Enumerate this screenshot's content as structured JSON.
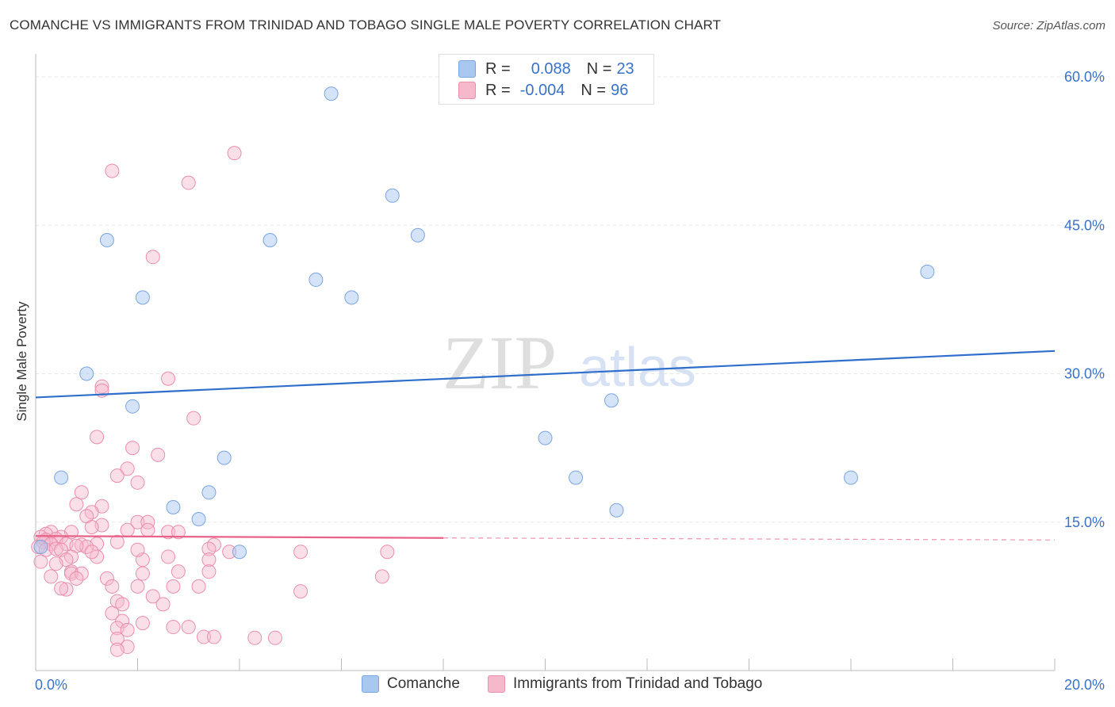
{
  "title": "COMANCHE VS IMMIGRANTS FROM TRINIDAD AND TOBAGO SINGLE MALE POVERTY CORRELATION CHART",
  "source": "Source: ZipAtlas.com",
  "watermark": {
    "zip": "ZIP",
    "atlas": "atlas"
  },
  "colors": {
    "blue_fill": "#a9c8f0",
    "blue_stroke": "#7aa6e0",
    "blue_line": "#2f6fcb",
    "pink_fill": "#f6b9cb",
    "pink_stroke": "#ea8fac",
    "pink_line": "#e8628a",
    "axis_text": "#3a72c8",
    "grid": "#e6e6e6"
  },
  "legend": {
    "rows": [
      {
        "r_label": "R =",
        "r_value": "0.088",
        "n_label": "N =",
        "n_value": "23",
        "color": "#a9c8f0",
        "border": "#7aa6e0"
      },
      {
        "r_label": "R =",
        "r_value": "-0.004",
        "n_label": "N =",
        "n_value": "96",
        "color": "#f6b9cb",
        "border": "#ea8fac"
      }
    ]
  },
  "bottom_legend": [
    {
      "label": "Comanche",
      "color": "#a9c8f0",
      "border": "#7aa6e0"
    },
    {
      "label": "Immigrants from Trinidad and Tobago",
      "color": "#f6b9cb",
      "border": "#ea8fac"
    }
  ],
  "chart_data": {
    "type": "scatter",
    "title": "COMANCHE VS IMMIGRANTS FROM TRINIDAD AND TOBAGO SINGLE MALE POVERTY CORRELATION CHART",
    "xlabel": "",
    "ylabel": "Single Male Poverty",
    "xlim": [
      0,
      20
    ],
    "ylim": [
      0,
      60
    ],
    "x_tick_labels": [
      "0.0%",
      "20.0%"
    ],
    "y_ticks": [
      15,
      30,
      45,
      60
    ],
    "y_tick_labels": [
      "15.0%",
      "30.0%",
      "45.0%",
      "60.0%"
    ],
    "series": [
      {
        "name": "Comanche",
        "r": 0.088,
        "n": 23,
        "trend": {
          "x": [
            0,
            20
          ],
          "y": [
            27.6,
            32.3
          ]
        },
        "points": [
          [
            5.8,
            58.3
          ],
          [
            7.0,
            48.0
          ],
          [
            1.4,
            43.5
          ],
          [
            4.6,
            43.5
          ],
          [
            7.5,
            44.0
          ],
          [
            5.5,
            39.5
          ],
          [
            2.1,
            37.7
          ],
          [
            6.2,
            37.7
          ],
          [
            17.5,
            40.3
          ],
          [
            1.0,
            30.0
          ],
          [
            1.9,
            26.7
          ],
          [
            11.3,
            27.3
          ],
          [
            3.7,
            21.5
          ],
          [
            10.0,
            23.5
          ],
          [
            0.5,
            19.5
          ],
          [
            10.6,
            19.5
          ],
          [
            16.0,
            19.5
          ],
          [
            3.4,
            18.0
          ],
          [
            2.7,
            16.5
          ],
          [
            11.4,
            16.2
          ],
          [
            3.2,
            15.3
          ],
          [
            4.0,
            12.0
          ],
          [
            0.1,
            12.5
          ]
        ]
      },
      {
        "name": "Immigrants from Trinidad and Tobago",
        "r": -0.004,
        "n": 96,
        "trend": {
          "x": [
            0,
            8
          ],
          "y": [
            13.6,
            13.4
          ]
        },
        "trend_dashed": {
          "x": [
            8,
            20
          ],
          "y": [
            13.4,
            13.2
          ]
        },
        "points": [
          [
            1.5,
            50.5
          ],
          [
            3.9,
            52.3
          ],
          [
            3.0,
            49.3
          ],
          [
            2.3,
            41.8
          ],
          [
            1.3,
            28.7
          ],
          [
            1.3,
            28.3
          ],
          [
            2.6,
            29.5
          ],
          [
            3.1,
            25.5
          ],
          [
            1.2,
            23.6
          ],
          [
            1.9,
            22.5
          ],
          [
            2.4,
            21.8
          ],
          [
            1.8,
            20.4
          ],
          [
            1.6,
            19.7
          ],
          [
            2.0,
            19.0
          ],
          [
            0.9,
            18.0
          ],
          [
            0.8,
            16.8
          ],
          [
            1.3,
            16.6
          ],
          [
            1.1,
            16.0
          ],
          [
            1.0,
            15.6
          ],
          [
            2.0,
            15.0
          ],
          [
            2.2,
            15.0
          ],
          [
            1.3,
            14.7
          ],
          [
            1.1,
            14.5
          ],
          [
            1.8,
            14.2
          ],
          [
            2.2,
            14.2
          ],
          [
            2.6,
            14.0
          ],
          [
            2.8,
            14.0
          ],
          [
            0.7,
            14.0
          ],
          [
            0.3,
            14.0
          ],
          [
            0.2,
            13.8
          ],
          [
            0.5,
            13.5
          ],
          [
            0.4,
            13.3
          ],
          [
            0.1,
            13.5
          ],
          [
            0.2,
            13.2
          ],
          [
            0.15,
            13.0
          ],
          [
            0.3,
            12.8
          ],
          [
            0.6,
            12.8
          ],
          [
            0.05,
            12.5
          ],
          [
            0.2,
            12.2
          ],
          [
            0.4,
            12.3
          ],
          [
            0.5,
            12.2
          ],
          [
            0.9,
            12.7
          ],
          [
            1.2,
            12.8
          ],
          [
            1.0,
            12.5
          ],
          [
            0.8,
            12.6
          ],
          [
            1.6,
            13.0
          ],
          [
            3.5,
            12.7
          ],
          [
            3.4,
            12.3
          ],
          [
            3.8,
            12.0
          ],
          [
            5.2,
            12.0
          ],
          [
            6.9,
            12.0
          ],
          [
            0.7,
            11.5
          ],
          [
            0.6,
            11.2
          ],
          [
            1.2,
            11.5
          ],
          [
            2.1,
            11.2
          ],
          [
            2.6,
            11.5
          ],
          [
            3.4,
            11.2
          ],
          [
            0.1,
            11.0
          ],
          [
            0.4,
            10.8
          ],
          [
            0.7,
            10.0
          ],
          [
            0.7,
            9.8
          ],
          [
            0.9,
            9.8
          ],
          [
            2.1,
            9.8
          ],
          [
            2.8,
            10.0
          ],
          [
            3.4,
            10.0
          ],
          [
            0.3,
            9.5
          ],
          [
            1.4,
            9.3
          ],
          [
            2.0,
            8.5
          ],
          [
            2.7,
            8.5
          ],
          [
            3.2,
            8.5
          ],
          [
            5.2,
            8.0
          ],
          [
            1.5,
            8.5
          ],
          [
            2.3,
            7.5
          ],
          [
            1.6,
            7.0
          ],
          [
            2.5,
            6.7
          ],
          [
            1.7,
            6.7
          ],
          [
            1.5,
            5.8
          ],
          [
            1.7,
            5.0
          ],
          [
            2.1,
            4.8
          ],
          [
            2.7,
            4.4
          ],
          [
            3.0,
            4.4
          ],
          [
            1.6,
            4.3
          ],
          [
            1.8,
            4.1
          ],
          [
            3.3,
            3.4
          ],
          [
            3.5,
            3.4
          ],
          [
            4.3,
            3.3
          ],
          [
            4.7,
            3.3
          ],
          [
            1.6,
            3.2
          ],
          [
            1.8,
            2.4
          ],
          [
            1.6,
            2.1
          ],
          [
            0.6,
            8.2
          ],
          [
            0.8,
            9.3
          ],
          [
            1.1,
            12.0
          ],
          [
            6.8,
            9.5
          ],
          [
            0.5,
            8.3
          ],
          [
            2.0,
            12.2
          ]
        ]
      }
    ]
  }
}
